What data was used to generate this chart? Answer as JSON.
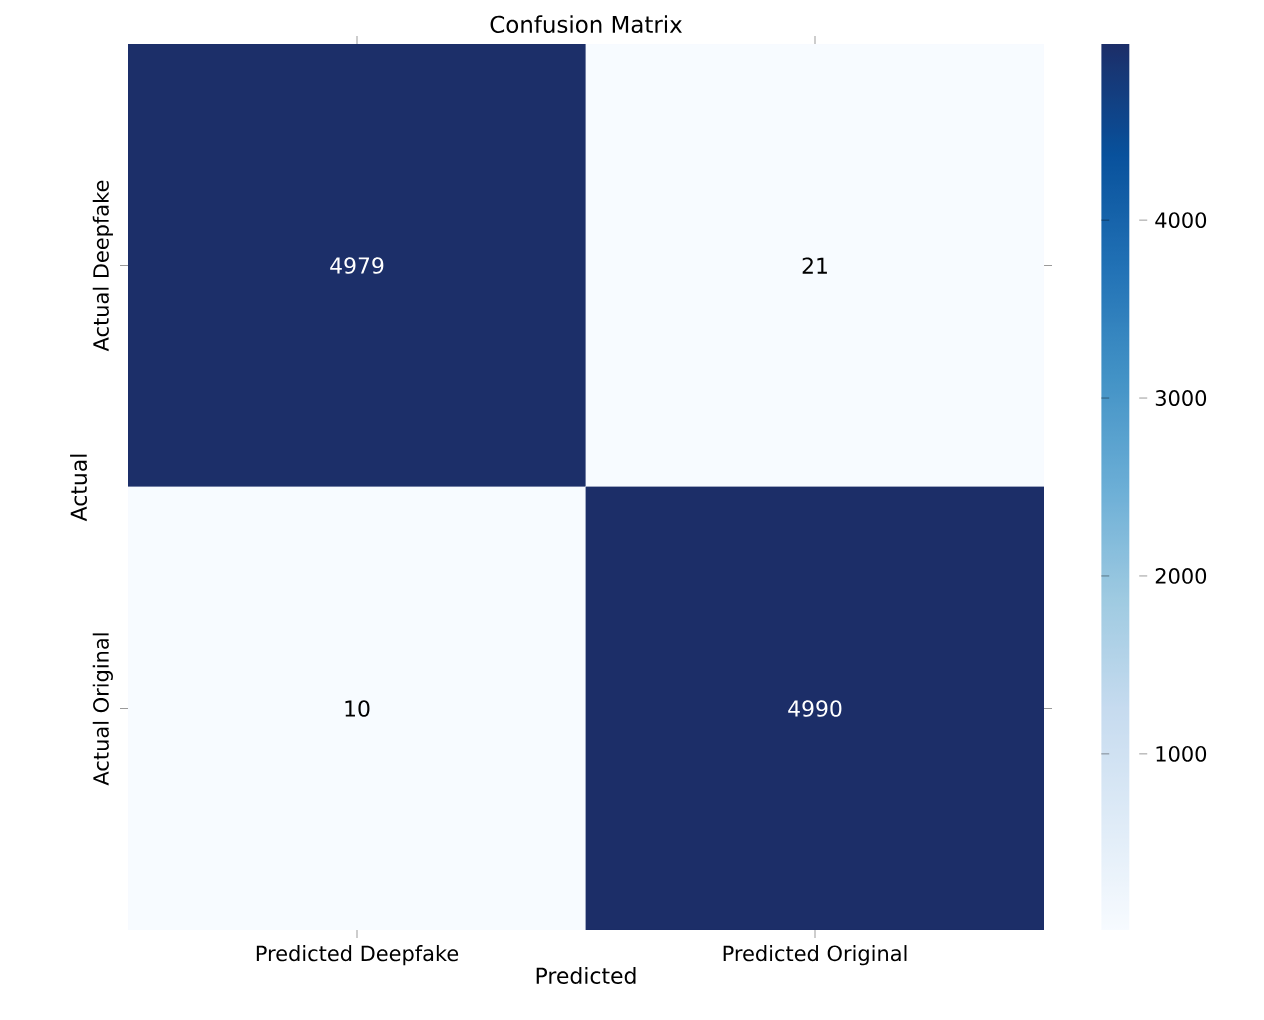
{
  "chart_data": {
    "type": "heatmap",
    "title": "Confusion Matrix",
    "xlabel": "Predicted",
    "ylabel": "Actual",
    "categories": [
      "Predicted Deepfake",
      "Predicted Original"
    ],
    "y_categories": [
      "Actual Deepfake",
      "Actual Original"
    ],
    "cells": [
      [
        4979,
        21
      ],
      [
        10,
        4990
      ]
    ],
    "data_labels": true,
    "clim": [
      10,
      4990
    ],
    "cticks": [
      1000,
      2000,
      3000,
      4000
    ]
  }
}
